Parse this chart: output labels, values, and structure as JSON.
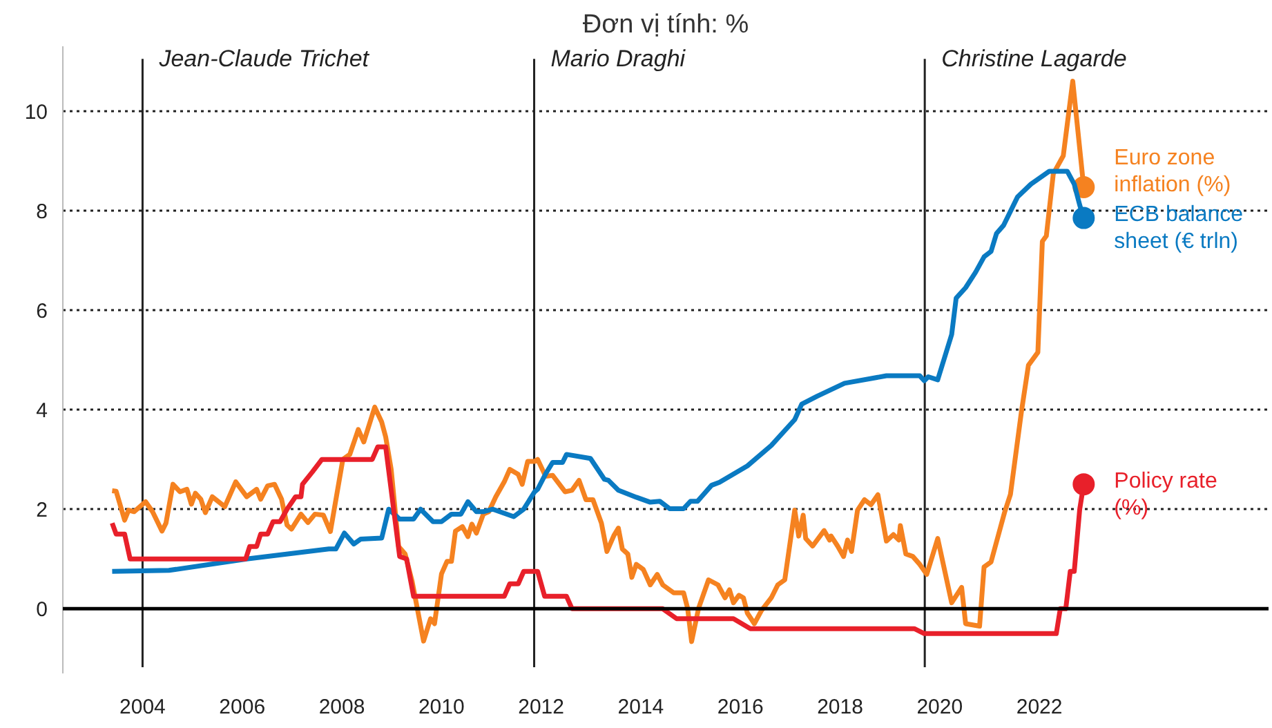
{
  "chart_data": {
    "type": "line",
    "title": "Đơn vị tính: %",
    "xlim": [
      2002.4,
      2026.6
    ],
    "ylim": [
      -1.3,
      11.3
    ],
    "xticks": [
      2004,
      2006,
      2008,
      2010,
      2012,
      2014,
      2016,
      2018,
      2020,
      2022
    ],
    "yticks": [
      0,
      2,
      4,
      6,
      8,
      10
    ],
    "grid": "y",
    "legend": false,
    "marker": "none",
    "line_style": "solid",
    "series": [
      {
        "name": "Euro zone inflation (%)",
        "color": "#f58220",
        "x": [
          2003.39,
          2003.47,
          2003.64,
          2003.72,
          2003.83,
          2004.06,
          2004.2,
          2004.39,
          2004.47,
          2004.61,
          2004.75,
          2004.89,
          2004.98,
          2005.06,
          2005.17,
          2005.26,
          2005.4,
          2005.65,
          2005.87,
          2006.09,
          2006.29,
          2006.37,
          2006.51,
          2006.65,
          2006.79,
          2006.9,
          2006.99,
          2007.18,
          2007.32,
          2007.46,
          2007.63,
          2007.77,
          2008.02,
          2008.16,
          2008.33,
          2008.44,
          2008.66,
          2008.8,
          2008.88,
          2008.99,
          2009.14,
          2009.27,
          2009.41,
          2009.64,
          2009.78,
          2009.86,
          2010.0,
          2010.11,
          2010.2,
          2010.28,
          2010.42,
          2010.53,
          2010.61,
          2010.7,
          2010.84,
          2010.95,
          2011.09,
          2011.26,
          2011.37,
          2011.54,
          2011.62,
          2011.73,
          2011.87,
          2011.93,
          2012.09,
          2012.23,
          2012.48,
          2012.62,
          2012.76,
          2012.9,
          2013.04,
          2013.21,
          2013.32,
          2013.46,
          2013.55,
          2013.63,
          2013.74,
          2013.82,
          2013.91,
          2014.05,
          2014.19,
          2014.33,
          2014.44,
          2014.66,
          2014.86,
          2014.94,
          2015.02,
          2015.16,
          2015.36,
          2015.55,
          2015.69,
          2015.78,
          2015.86,
          2015.97,
          2016.06,
          2016.14,
          2016.28,
          2016.42,
          2016.62,
          2016.75,
          2016.89,
          2017.09,
          2017.17,
          2017.26,
          2017.31,
          2017.45,
          2017.68,
          2017.79,
          2017.82,
          2017.95,
          2018.07,
          2018.15,
          2018.23,
          2018.35,
          2018.49,
          2018.62,
          2018.76,
          2018.93,
          2019.07,
          2019.18,
          2019.21,
          2019.32,
          2019.46,
          2019.6,
          2019.74,
          2019.96,
          2020.24,
          2020.44,
          2020.52,
          2020.8,
          2020.89,
          2021.03,
          2021.3,
          2021.42,
          2021.64,
          2021.78,
          2021.97,
          2022.06,
          2022.14,
          2022.28,
          2022.48,
          2022.67,
          2022.89
        ],
        "values": [
          2.37,
          2.36,
          1.78,
          1.98,
          1.95,
          2.15,
          1.95,
          1.56,
          1.72,
          2.5,
          2.35,
          2.4,
          2.1,
          2.32,
          2.2,
          1.93,
          2.25,
          2.05,
          2.55,
          2.25,
          2.4,
          2.2,
          2.47,
          2.5,
          2.2,
          1.68,
          1.6,
          1.9,
          1.73,
          1.9,
          1.88,
          1.55,
          3.0,
          3.1,
          3.6,
          3.35,
          4.05,
          3.75,
          3.45,
          2.8,
          1.25,
          1.1,
          0.55,
          -0.65,
          -0.2,
          -0.3,
          0.7,
          0.95,
          0.95,
          1.56,
          1.65,
          1.45,
          1.7,
          1.52,
          1.9,
          1.95,
          2.25,
          2.55,
          2.8,
          2.7,
          2.5,
          2.96,
          2.96,
          3.0,
          2.66,
          2.68,
          2.35,
          2.38,
          2.58,
          2.19,
          2.19,
          1.72,
          1.15,
          1.47,
          1.62,
          1.2,
          1.1,
          0.63,
          0.89,
          0.79,
          0.48,
          0.69,
          0.48,
          0.32,
          0.32,
          0.01,
          -0.66,
          0.01,
          0.58,
          0.48,
          0.22,
          0.38,
          0.12,
          0.27,
          0.22,
          -0.09,
          -0.3,
          -0.04,
          0.22,
          0.48,
          0.58,
          1.98,
          1.46,
          1.88,
          1.41,
          1.26,
          1.57,
          1.38,
          1.46,
          1.26,
          1.05,
          1.38,
          1.15,
          1.98,
          2.19,
          2.09,
          2.29,
          1.36,
          1.49,
          1.38,
          1.67,
          1.1,
          1.05,
          0.89,
          0.69,
          1.41,
          0.12,
          0.43,
          -0.3,
          -0.35,
          0.84,
          0.94,
          1.93,
          2.3,
          3.96,
          4.89,
          5.15,
          7.38,
          7.49,
          8.74,
          9.1,
          10.6,
          8.47
        ]
      },
      {
        "name": "ECB balance sheet (€ trln)",
        "color": "#0a7ac2",
        "x": [
          2003.39,
          2004.53,
          2006.09,
          2007.74,
          2007.88,
          2008.05,
          2008.24,
          2008.38,
          2008.8,
          2008.94,
          2009.16,
          2009.44,
          2009.58,
          2009.83,
          2010.0,
          2010.2,
          2010.39,
          2010.53,
          2010.7,
          2010.84,
          2011.03,
          2011.45,
          2011.65,
          2011.87,
          2011.93,
          2012.09,
          2012.23,
          2012.43,
          2012.51,
          2012.99,
          2013.27,
          2013.35,
          2013.55,
          2013.91,
          2014.19,
          2014.38,
          2014.58,
          2014.86,
          2015.0,
          2015.14,
          2015.42,
          2015.58,
          2016.14,
          2016.62,
          2017.09,
          2017.23,
          2017.54,
          2018.09,
          2018.93,
          2019.6,
          2019.69,
          2019.77,
          2019.96,
          2020.24,
          2020.33,
          2020.52,
          2020.72,
          2020.89,
          2021.03,
          2021.14,
          2021.28,
          2021.56,
          2021.83,
          2022.2,
          2022.56,
          2022.7,
          2022.81,
          2022.89
        ],
        "values": [
          0.75,
          0.77,
          1.0,
          1.2,
          1.2,
          1.52,
          1.3,
          1.4,
          1.42,
          2.0,
          1.8,
          1.8,
          2.0,
          1.75,
          1.75,
          1.9,
          1.9,
          2.15,
          1.95,
          1.95,
          2.0,
          1.85,
          2.0,
          2.35,
          2.4,
          2.71,
          2.94,
          2.94,
          3.1,
          3.02,
          2.6,
          2.58,
          2.38,
          2.24,
          2.14,
          2.16,
          2.01,
          2.01,
          2.16,
          2.16,
          2.48,
          2.54,
          2.87,
          3.28,
          3.8,
          4.11,
          4.27,
          4.53,
          4.68,
          4.68,
          4.58,
          4.66,
          4.6,
          5.51,
          6.24,
          6.45,
          6.76,
          7.07,
          7.18,
          7.54,
          7.7,
          8.27,
          8.53,
          8.79,
          8.79,
          8.53,
          8.11,
          7.85
        ]
      },
      {
        "name": "Policy rate (%)",
        "color": "#e8202a",
        "x": [
          2003.39,
          2003.47,
          2003.64,
          2003.75,
          2006.07,
          2006.15,
          2006.29,
          2006.37,
          2006.51,
          2006.62,
          2006.76,
          2006.9,
          2007.07,
          2007.18,
          2007.21,
          2007.41,
          2007.6,
          2008.61,
          2008.72,
          2008.88,
          2009.16,
          2009.3,
          2009.44,
          2011.26,
          2011.37,
          2011.54,
          2011.65,
          2011.93,
          2012.07,
          2012.51,
          2012.62,
          2014.44,
          2014.72,
          2015.86,
          2016.2,
          2019.49,
          2019.69,
          2022.34,
          2022.42,
          2022.53,
          2022.62,
          2022.7,
          2022.81,
          2022.89
        ],
        "values": [
          1.72,
          1.5,
          1.5,
          1.0,
          1.0,
          1.25,
          1.25,
          1.5,
          1.5,
          1.75,
          1.75,
          2.0,
          2.25,
          2.25,
          2.5,
          2.75,
          3.0,
          3.0,
          3.25,
          3.25,
          1.05,
          1.0,
          0.25,
          0.25,
          0.5,
          0.5,
          0.75,
          0.75,
          0.25,
          0.25,
          0.0,
          0.0,
          -0.2,
          -0.2,
          -0.4,
          -0.4,
          -0.5,
          -0.5,
          0.0,
          0.0,
          0.75,
          0.75,
          2.0,
          2.5
        ]
      }
    ],
    "ref_lines": [
      {
        "axis": "y",
        "value": 0,
        "color": "#000000",
        "line_style": "solid"
      },
      {
        "axis": "x",
        "value": 2004.0,
        "label": "Jean-Claude Trichet",
        "color": "#222222",
        "line_style": "solid"
      },
      {
        "axis": "x",
        "value": 2011.86,
        "label": "Mario Draghi",
        "color": "#222222",
        "line_style": "solid"
      },
      {
        "axis": "x",
        "value": 2019.7,
        "label": "Christine Lagarde",
        "color": "#222222",
        "line_style": "solid"
      }
    ]
  }
}
